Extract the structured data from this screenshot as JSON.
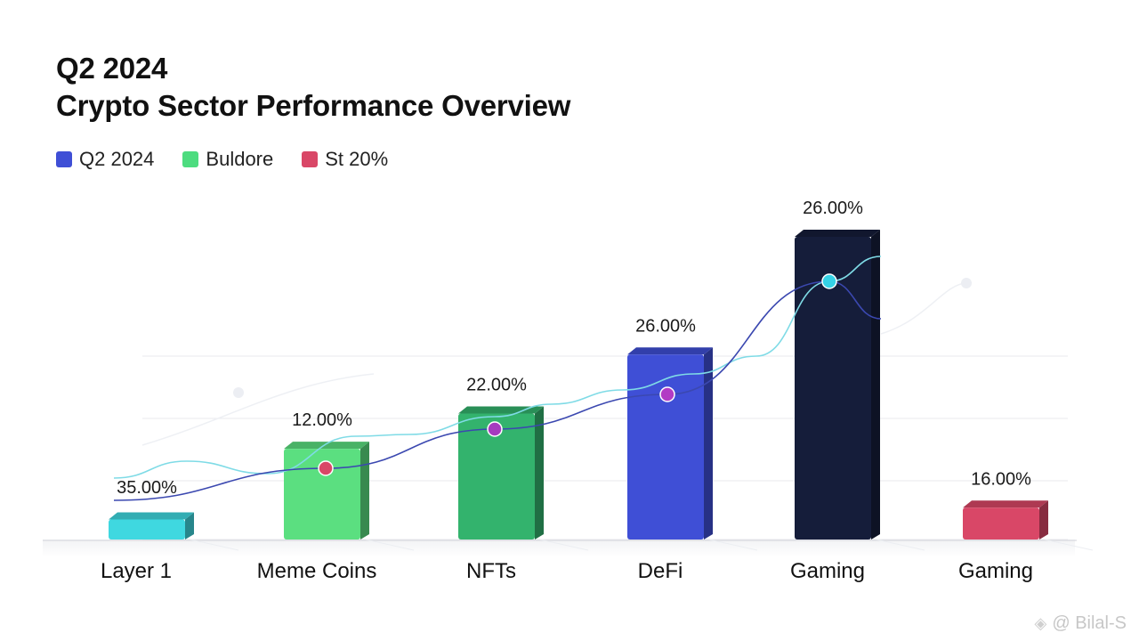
{
  "chart_data": {
    "type": "bar",
    "title_lines": [
      "Q2 2024",
      "Crypto Sector Performance Overview"
    ],
    "legend": [
      {
        "label": "Q2 2024",
        "color": "#3f4fd6"
      },
      {
        "label": "Buldore",
        "color": "#4ddc7f"
      },
      {
        "label": "St 20%",
        "color": "#d94767"
      }
    ],
    "categories": [
      "Layer 1",
      "Meme Coins",
      "NFTs",
      "DeFi",
      "Gaming",
      "Gaming"
    ],
    "value_labels": [
      "35.00%",
      "12.00%",
      "22.00%",
      "26.00%",
      "26.00%",
      "16.00%"
    ],
    "bar_colors": [
      "#3fd8e0",
      "#5bdf80",
      "#33b36d",
      "#3f4fd6",
      "#151d3a",
      "#d94767"
    ],
    "bar_heights_relative": [
      2,
      8,
      11,
      16,
      26,
      3
    ],
    "trend_points": [
      {
        "category": "Meme Coins",
        "color": "#d94767"
      },
      {
        "category": "NFTs",
        "color": "#a63bbf"
      },
      {
        "category": "DeFi",
        "color": "#b23bc4"
      },
      {
        "category": "Gaming",
        "color": "#35d2e6"
      }
    ],
    "grid": true,
    "legend_position": "top-left"
  },
  "watermark": {
    "icon": "diamond-logo-icon",
    "text": "@ Bilal-S"
  }
}
